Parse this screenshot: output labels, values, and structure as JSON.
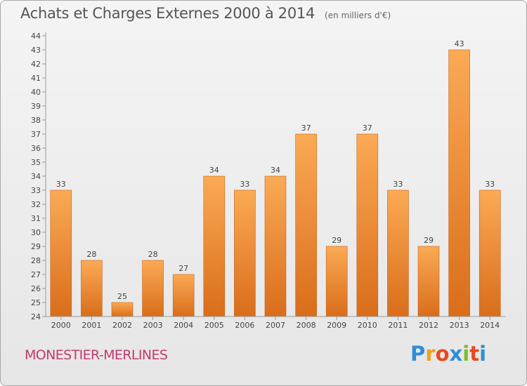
{
  "header": {
    "title": "Achats et Charges Externes 2000 à 2014",
    "unit": "(en milliers d'€)"
  },
  "footer": {
    "commune": "MONESTIER-MERLINES",
    "logo": {
      "letters": [
        "P",
        "r",
        "o",
        "x",
        "i",
        "t",
        "i"
      ],
      "colors": [
        "#2c8fd6",
        "#f0a21c",
        "#e84a1f",
        "#2c8fd6",
        "#7bbf2a",
        "#e84a1f",
        "#2c8fd6"
      ]
    }
  },
  "chart_data": {
    "type": "bar",
    "categories": [
      "2000",
      "2001",
      "2002",
      "2003",
      "2004",
      "2005",
      "2006",
      "2007",
      "2008",
      "2009",
      "2010",
      "2011",
      "2012",
      "2013",
      "2014"
    ],
    "values": [
      33,
      28,
      25,
      28,
      27,
      34,
      33,
      34,
      37,
      29,
      37,
      33,
      29,
      43,
      33
    ],
    "data_labels": [
      "33",
      "28",
      "25",
      "28",
      "27",
      "34",
      "33",
      "34",
      "37",
      "29",
      "37",
      "33",
      "29",
      "43",
      "33"
    ],
    "title": "Achats et Charges Externes 2000 à 2014",
    "ylim": [
      24,
      44
    ],
    "yticks": [
      24,
      25,
      26,
      27,
      28,
      29,
      30,
      31,
      32,
      33,
      34,
      35,
      36,
      37,
      38,
      39,
      40,
      41,
      42,
      43,
      44
    ],
    "grid": false,
    "bar_color_top": "#fbaa55",
    "bar_color_bottom": "#d96d1a",
    "axis_color": "#9a9a9a",
    "label_color": "#444444"
  }
}
